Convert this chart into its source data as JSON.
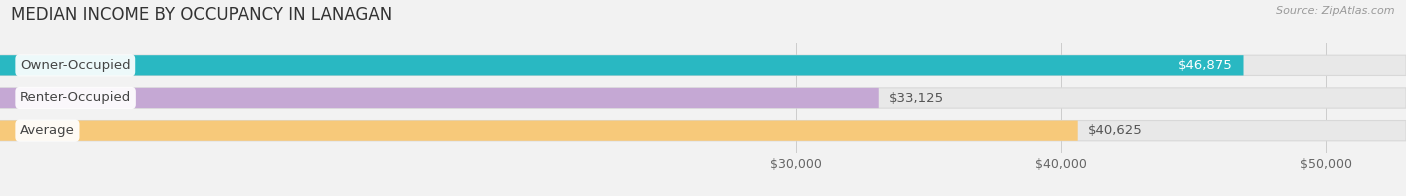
{
  "title": "MEDIAN INCOME BY OCCUPANCY IN LANAGAN",
  "source": "Source: ZipAtlas.com",
  "categories": [
    "Owner-Occupied",
    "Renter-Occupied",
    "Average"
  ],
  "values": [
    46875,
    33125,
    40625
  ],
  "bar_colors": [
    "#29b8c2",
    "#c5a8d4",
    "#f7c97a"
  ],
  "value_labels": [
    "$46,875",
    "$33,125",
    "$40,625"
  ],
  "value_label_colors": [
    "white",
    "#555555",
    "#555555"
  ],
  "x_ticks": [
    30000,
    40000,
    50000
  ],
  "x_tick_labels": [
    "$30,000",
    "$40,000",
    "$50,000"
  ],
  "xmin": 0,
  "xmax": 53000,
  "background_color": "#f2f2f2",
  "bar_bg_color": "#e8e8e8",
  "bar_bg_edge_color": "#d8d8d8",
  "title_fontsize": 12,
  "source_fontsize": 8,
  "label_fontsize": 9.5,
  "tick_fontsize": 9,
  "bar_height": 0.62,
  "bar_spacing": 1.0,
  "label_pill_color": "white",
  "label_pill_alpha": 0.92
}
